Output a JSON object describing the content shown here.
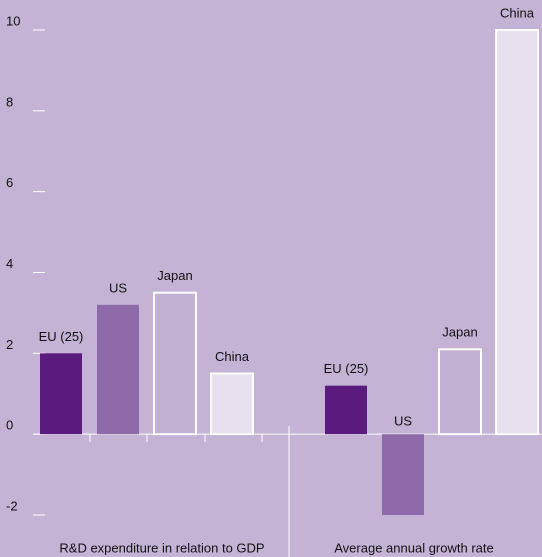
{
  "chart_data": {
    "type": "bar",
    "categories": [
      "R&D expenditure in relation to GDP",
      "Average annual growth rate"
    ],
    "series": [
      {
        "name": "EU (25)",
        "color": "#5a1a7e",
        "values": [
          2.0,
          1.2
        ]
      },
      {
        "name": "US",
        "color": "#8e6aaa",
        "values": [
          3.2,
          -2.0
        ]
      },
      {
        "name": "Japan",
        "color": "#c2b1d3",
        "values": [
          3.5,
          2.1
        ]
      },
      {
        "name": "China",
        "color": "#e8e0ee",
        "values": [
          1.5,
          10.0
        ]
      }
    ],
    "ylim": [
      -2,
      10
    ],
    "yticks": [
      -2,
      0,
      2,
      4,
      6,
      8,
      10
    ]
  }
}
